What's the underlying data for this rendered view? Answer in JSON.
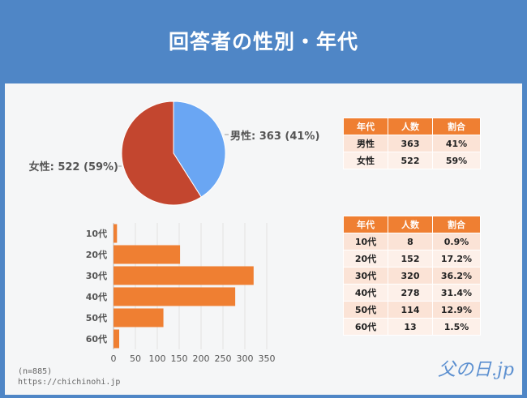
{
  "title": "回答者の性別・年代",
  "footnote": {
    "n": "(n=885)",
    "url": "https://chichinohi.jp"
  },
  "logo": "父の日.jp",
  "chart_data": [
    {
      "type": "pie",
      "slices": [
        {
          "label": "男性: 363 (41%)",
          "value": 363,
          "color": "#6aa6f3"
        },
        {
          "label": "女性: 522 (59%)",
          "value": 522,
          "color": "#c3462f"
        }
      ]
    },
    {
      "type": "bar",
      "orientation": "horizontal",
      "categories": [
        "10代",
        "20代",
        "30代",
        "40代",
        "50代",
        "60代"
      ],
      "values": [
        8,
        152,
        320,
        278,
        114,
        13
      ],
      "xlim": [
        0,
        350
      ],
      "xticks": [
        0,
        50,
        100,
        150,
        200,
        250,
        300,
        350
      ],
      "grid": true,
      "color": "#ef7f32"
    },
    {
      "type": "table",
      "headers": [
        "年代",
        "人数",
        "割合"
      ],
      "rows": [
        [
          "男性",
          "363",
          "41%"
        ],
        [
          "女性",
          "522",
          "59%"
        ]
      ]
    },
    {
      "type": "table",
      "headers": [
        "年代",
        "人数",
        "割合"
      ],
      "rows": [
        [
          "10代",
          "8",
          "0.9%"
        ],
        [
          "20代",
          "152",
          "17.2%"
        ],
        [
          "30代",
          "320",
          "36.2%"
        ],
        [
          "40代",
          "278",
          "31.4%"
        ],
        [
          "50代",
          "114",
          "12.9%"
        ],
        [
          "60代",
          "13",
          "1.5%"
        ]
      ]
    }
  ]
}
